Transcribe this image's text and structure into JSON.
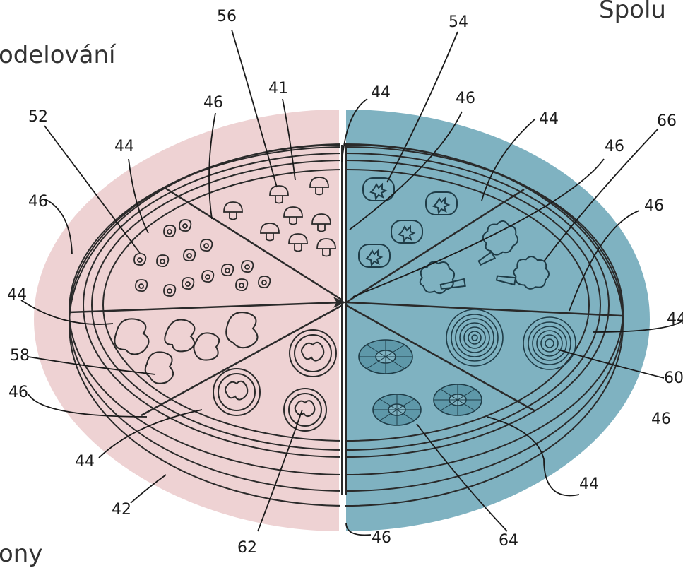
{
  "captions": {
    "top_left": "odelování",
    "top_right": "Spolu",
    "bottom_left": "ony"
  },
  "colors": {
    "left_half": "#eed2d3",
    "right_half": "#7fb2c1",
    "line": "#2a2a2a",
    "caption_text": "#333333"
  },
  "labels": {
    "l56": "56",
    "l54": "54",
    "l41": "41",
    "l44a": "44",
    "l46a": "46",
    "l46b": "46",
    "l52": "52",
    "l44b": "44",
    "l44c": "44",
    "l66": "66",
    "l46c": "46",
    "l46d": "46",
    "l46e": "46",
    "l44d": "44",
    "l44e": "44",
    "l58": "58",
    "l60": "60",
    "l46f": "46",
    "l46g": "46",
    "l44f": "44",
    "l44g": "44",
    "l42": "42",
    "l62": "62",
    "l46h": "46",
    "l64": "64"
  },
  "toppings": {
    "pepperoni_slice": "pepperoni",
    "mushroom_slice": "mushrooms",
    "pepper_slice": "peppers",
    "broccoli_slice": "broccoli",
    "onion_slice": "onions",
    "tomato_slice": "tomatoes",
    "pineapple_slice": "pineapple"
  }
}
